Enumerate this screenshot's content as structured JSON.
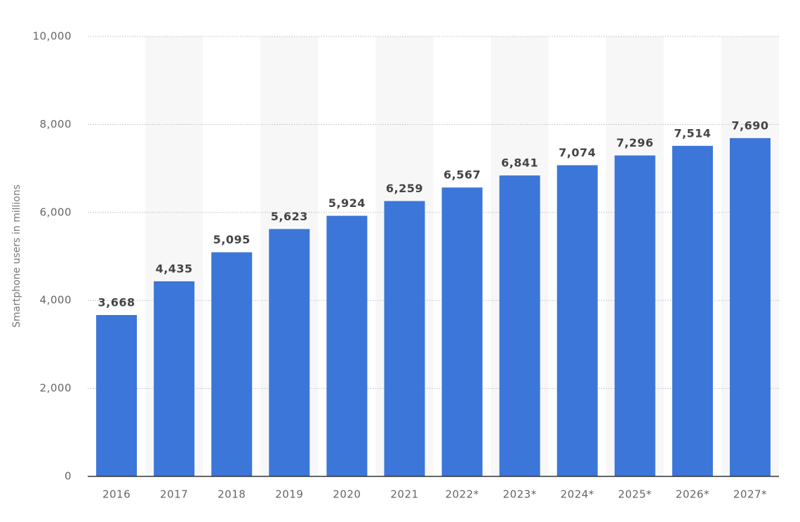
{
  "chart_data": {
    "type": "bar",
    "y_label": "Smartphone users in millions",
    "categories": [
      "2016",
      "2017",
      "2018",
      "2019",
      "2020",
      "2021",
      "2022*",
      "2023*",
      "2024*",
      "2025*",
      "2026*",
      "2027*"
    ],
    "values": [
      3668,
      4435,
      5095,
      5623,
      5924,
      6259,
      6567,
      6841,
      7074,
      7296,
      7514,
      7690
    ],
    "value_labels": [
      "3,668",
      "4,435",
      "5,095",
      "5,623",
      "5,924",
      "6,259",
      "6,567",
      "6,841",
      "7,074",
      "7,296",
      "7,514",
      "7,690"
    ],
    "color": "#3c76d8",
    "ylim": [
      0,
      10000
    ],
    "yticks": [
      0,
      {
        "value": 2000,
        "label": "2,000"
      },
      {
        "value": 4000,
        "label": "4,000"
      },
      {
        "value": 6000,
        "label": "6,000"
      },
      {
        "value": 8000,
        "label": "8,000"
      },
      {
        "value": 10000,
        "label": "10,000"
      }
    ],
    "grid": true
  }
}
